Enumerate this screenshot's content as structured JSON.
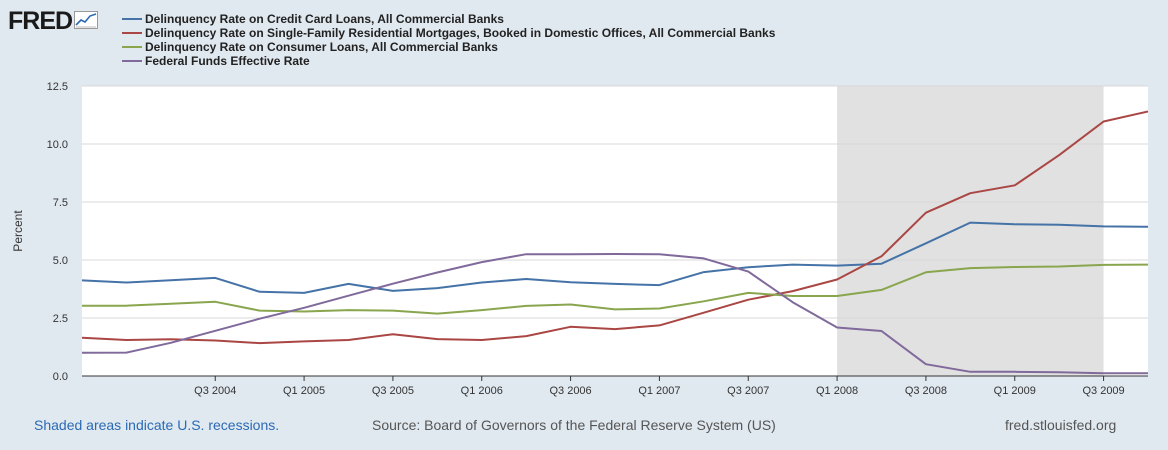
{
  "brand": {
    "logo_text": "FRED",
    "logo_icon": "line-chart-icon"
  },
  "colors": {
    "credit_card": "#4572a7",
    "mortgage": "#aa4643",
    "consumer": "#89a54e",
    "fed_funds": "#80699b",
    "recession": "#e1e1e1",
    "plot_bg": "#ffffff"
  },
  "legend": [
    {
      "label": "Delinquency Rate on Credit Card Loans, All Commercial Banks",
      "color": "#4572a7"
    },
    {
      "label": "Delinquency Rate on Single-Family Residential Mortgages, Booked in Domestic Offices, All Commercial Banks",
      "color": "#aa4643"
    },
    {
      "label": "Delinquency Rate on Consumer Loans, All Commercial Banks",
      "color": "#89a54e"
    },
    {
      "label": "Federal Funds Effective Rate",
      "color": "#80699b"
    }
  ],
  "footer": {
    "note": "Shaded areas indicate U.S. recessions.",
    "source": "Source: Board of Governors of the Federal Reserve System (US)",
    "site": "fred.stlouisfed.org"
  },
  "chart_data": {
    "type": "line",
    "title": "",
    "xlabel": "",
    "ylabel": "Percent",
    "ylim": [
      0,
      12.5
    ],
    "yticks": [
      0.0,
      2.5,
      5.0,
      7.5,
      10.0,
      12.5
    ],
    "ytick_labels": [
      "0.0",
      "2.5",
      "5.0",
      "7.5",
      "10.0",
      "12.5"
    ],
    "x_start_quarter": "Q4 2003",
    "x_end_quarter": "Q4 2009",
    "xticks": [
      {
        "label": "Q3 2004",
        "q": 3
      },
      {
        "label": "Q1 2005",
        "q": 5
      },
      {
        "label": "Q3 2005",
        "q": 7
      },
      {
        "label": "Q1 2006",
        "q": 9
      },
      {
        "label": "Q3 2006",
        "q": 11
      },
      {
        "label": "Q1 2007",
        "q": 13
      },
      {
        "label": "Q3 2007",
        "q": 15
      },
      {
        "label": "Q1 2008",
        "q": 17
      },
      {
        "label": "Q3 2008",
        "q": 19
      },
      {
        "label": "Q1 2009",
        "q": 21
      },
      {
        "label": "Q3 2009",
        "q": 23
      }
    ],
    "recession": {
      "start_q": 17,
      "end_q": 23
    },
    "quarters": [
      "Q4 2003",
      "Q1 2004",
      "Q2 2004",
      "Q3 2004",
      "Q4 2004",
      "Q1 2005",
      "Q2 2005",
      "Q3 2005",
      "Q4 2005",
      "Q1 2006",
      "Q2 2006",
      "Q3 2006",
      "Q4 2006",
      "Q1 2007",
      "Q2 2007",
      "Q3 2007",
      "Q4 2007",
      "Q1 2008",
      "Q2 2008",
      "Q3 2008",
      "Q4 2008",
      "Q1 2009",
      "Q2 2009",
      "Q3 2009",
      "Q4 2009"
    ],
    "series": [
      {
        "name": "Delinquency Rate on Credit Card Loans, All Commercial Banks",
        "color": "#4572a7",
        "values": [
          4.12,
          4.03,
          4.13,
          4.23,
          3.63,
          3.58,
          3.97,
          3.67,
          3.79,
          4.03,
          4.18,
          4.04,
          3.97,
          3.92,
          4.48,
          4.69,
          4.8,
          4.76,
          4.84,
          5.72,
          6.61,
          6.54,
          6.52,
          6.45,
          6.43
        ]
      },
      {
        "name": "Delinquency Rate on Single-Family Residential Mortgages, Booked in Domestic Offices, All Commercial Banks",
        "color": "#aa4643",
        "values": [
          1.65,
          1.55,
          1.58,
          1.53,
          1.42,
          1.49,
          1.55,
          1.8,
          1.59,
          1.55,
          1.72,
          2.12,
          2.02,
          2.18,
          2.73,
          3.29,
          3.66,
          4.16,
          5.16,
          7.04,
          7.88,
          8.22,
          9.52,
          10.97,
          11.4
        ]
      },
      {
        "name": "Delinquency Rate on Consumer Loans, All Commercial Banks",
        "color": "#89a54e",
        "values": [
          3.03,
          3.03,
          3.11,
          3.2,
          2.82,
          2.78,
          2.84,
          2.82,
          2.69,
          2.84,
          3.02,
          3.08,
          2.87,
          2.91,
          3.22,
          3.58,
          3.45,
          3.45,
          3.71,
          4.47,
          4.65,
          4.7,
          4.72,
          4.79,
          4.8
        ]
      },
      {
        "name": "Federal Funds Effective Rate",
        "color": "#80699b",
        "values": [
          1.0,
          1.01,
          1.43,
          1.95,
          2.47,
          2.94,
          3.46,
          3.98,
          4.46,
          4.91,
          5.25,
          5.25,
          5.26,
          5.25,
          5.07,
          4.5,
          3.18,
          2.09,
          1.94,
          0.51,
          0.18,
          0.18,
          0.16,
          0.12,
          0.12
        ]
      }
    ]
  }
}
